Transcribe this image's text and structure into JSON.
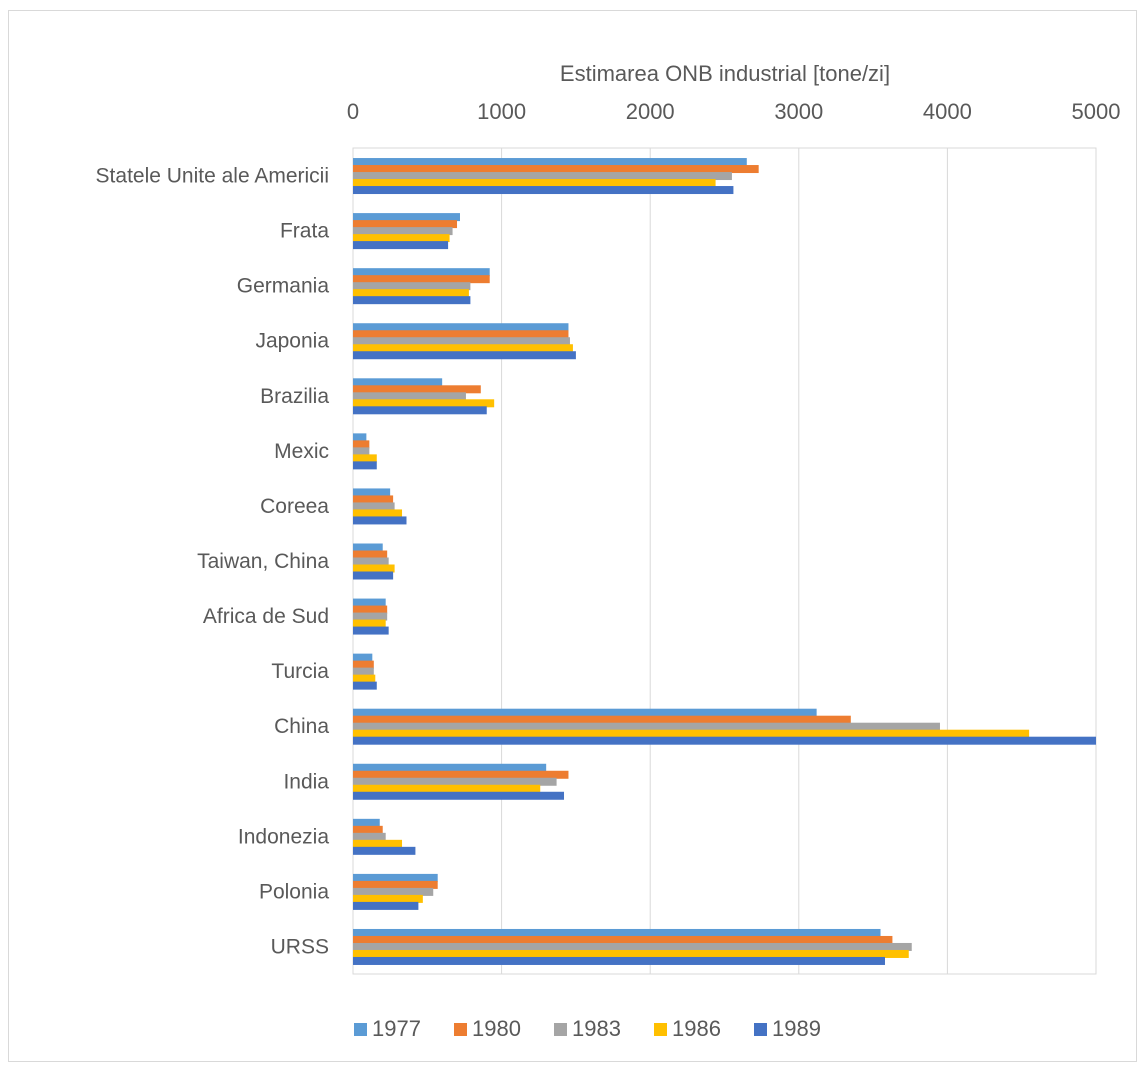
{
  "chart_data": {
    "type": "bar",
    "orientation": "horizontal",
    "title": "",
    "xlabel": "Estimarea ONB industrial [tone/zi]",
    "ylabel": "",
    "x_axis_position": "top",
    "xlim": [
      0,
      5000
    ],
    "x_ticks": [
      "0",
      "1000",
      "2000",
      "3000",
      "4000",
      "5000"
    ],
    "grid": true,
    "legend_position": "bottom",
    "categories": [
      "Statele Unite ale Americii",
      "Frata",
      "Germania",
      "Japonia",
      "Brazilia",
      "Mexic",
      "Coreea",
      "Taiwan, China",
      "Africa de Sud",
      "Turcia",
      "China",
      "India",
      "Indonezia",
      "Polonia",
      "URSS"
    ],
    "series": [
      {
        "name": "1977",
        "color": "#5B9BD5",
        "values": [
          2650,
          720,
          920,
          1450,
          600,
          90,
          250,
          200,
          220,
          130,
          3120,
          1300,
          180,
          570,
          3550
        ]
      },
      {
        "name": "1980",
        "color": "#ED7D31",
        "values": [
          2730,
          700,
          920,
          1450,
          860,
          110,
          270,
          230,
          230,
          140,
          3350,
          1450,
          200,
          570,
          3630
        ]
      },
      {
        "name": "1983",
        "color": "#A5A5A5",
        "values": [
          2550,
          670,
          790,
          1460,
          760,
          110,
          280,
          240,
          230,
          140,
          3950,
          1370,
          220,
          540,
          3760
        ]
      },
      {
        "name": "1986",
        "color": "#FFC000",
        "values": [
          2440,
          650,
          780,
          1480,
          950,
          160,
          330,
          280,
          220,
          150,
          4550,
          1260,
          330,
          470,
          3740
        ]
      },
      {
        "name": "1989",
        "color": "#4472C4",
        "values": [
          2560,
          640,
          790,
          1500,
          900,
          160,
          360,
          270,
          240,
          160,
          5000,
          1420,
          420,
          440,
          3580
        ]
      }
    ]
  }
}
